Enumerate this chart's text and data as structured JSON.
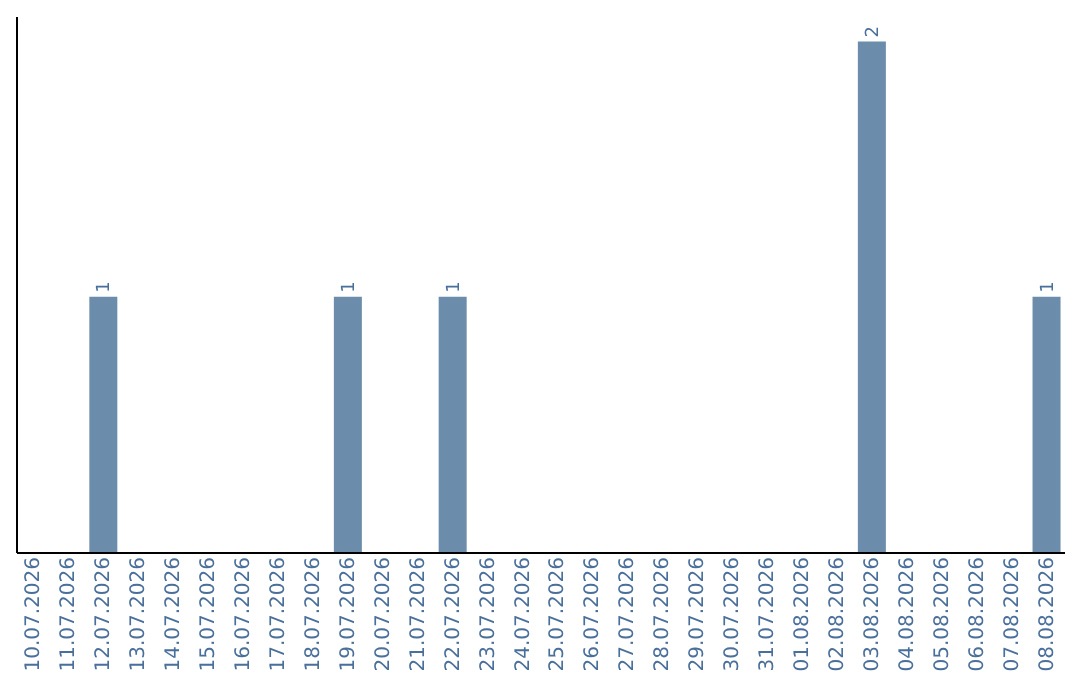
{
  "chart_data": {
    "type": "bar",
    "categories": [
      "10.07.2026",
      "11.07.2026",
      "12.07.2026",
      "13.07.2026",
      "14.07.2026",
      "15.07.2026",
      "16.07.2026",
      "17.07.2026",
      "18.07.2026",
      "19.07.2026",
      "20.07.2026",
      "21.07.2026",
      "22.07.2026",
      "23.07.2026",
      "24.07.2026",
      "25.07.2026",
      "26.07.2026",
      "27.07.2026",
      "28.07.2026",
      "29.07.2026",
      "30.07.2026",
      "31.07.2026",
      "01.08.2026",
      "02.08.2026",
      "03.08.2026",
      "04.08.2026",
      "05.08.2026",
      "06.08.2026",
      "07.08.2026",
      "08.08.2026"
    ],
    "values": [
      null,
      null,
      1,
      null,
      null,
      null,
      null,
      null,
      null,
      1,
      null,
      null,
      1,
      null,
      null,
      null,
      null,
      null,
      null,
      null,
      null,
      null,
      null,
      null,
      2,
      null,
      null,
      null,
      null,
      1
    ],
    "color": "#6b8cab",
    "ylim": [
      0,
      2.1
    ],
    "tick_labels": "x",
    "data_labels": true,
    "grid": false
  }
}
